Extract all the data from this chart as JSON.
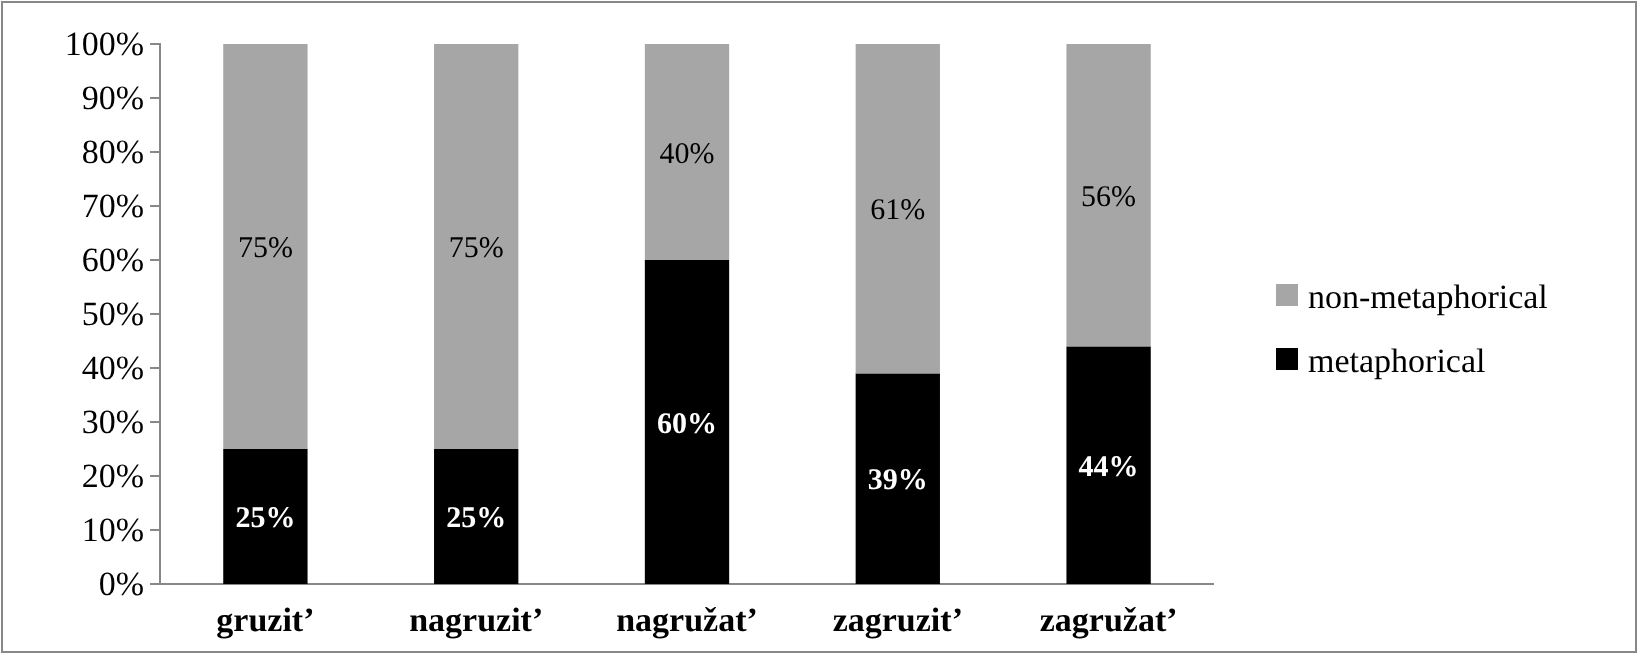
{
  "chart_data": {
    "type": "bar",
    "stacked": true,
    "categories": [
      "gruzit’",
      "nagruzit’",
      "nagružat’",
      "zagruzit’",
      "zagružat’"
    ],
    "series": [
      {
        "name": "metaphorical",
        "color": "#000000",
        "values": [
          25,
          25,
          60,
          39,
          44
        ],
        "value_labels": [
          "25%",
          "25%",
          "60%",
          "39%",
          "44%"
        ]
      },
      {
        "name": "non-metaphorical",
        "color": "#a6a6a6",
        "values": [
          75,
          75,
          40,
          61,
          56
        ],
        "value_labels": [
          "75%",
          "75%",
          "40%",
          "61%",
          "56%"
        ]
      }
    ],
    "ylim": [
      0,
      100
    ],
    "yticks": [
      {
        "value": 0,
        "label": "0%"
      },
      {
        "value": 10,
        "label": "10%"
      },
      {
        "value": 20,
        "label": "20%"
      },
      {
        "value": 30,
        "label": "30%"
      },
      {
        "value": 40,
        "label": "40%"
      },
      {
        "value": 50,
        "label": "50%"
      },
      {
        "value": 60,
        "label": "60%"
      },
      {
        "value": 70,
        "label": "70%"
      },
      {
        "value": 80,
        "label": "80%"
      },
      {
        "value": 90,
        "label": "90%"
      },
      {
        "value": 100,
        "label": "100%"
      }
    ],
    "grid": false,
    "legend": "right"
  }
}
